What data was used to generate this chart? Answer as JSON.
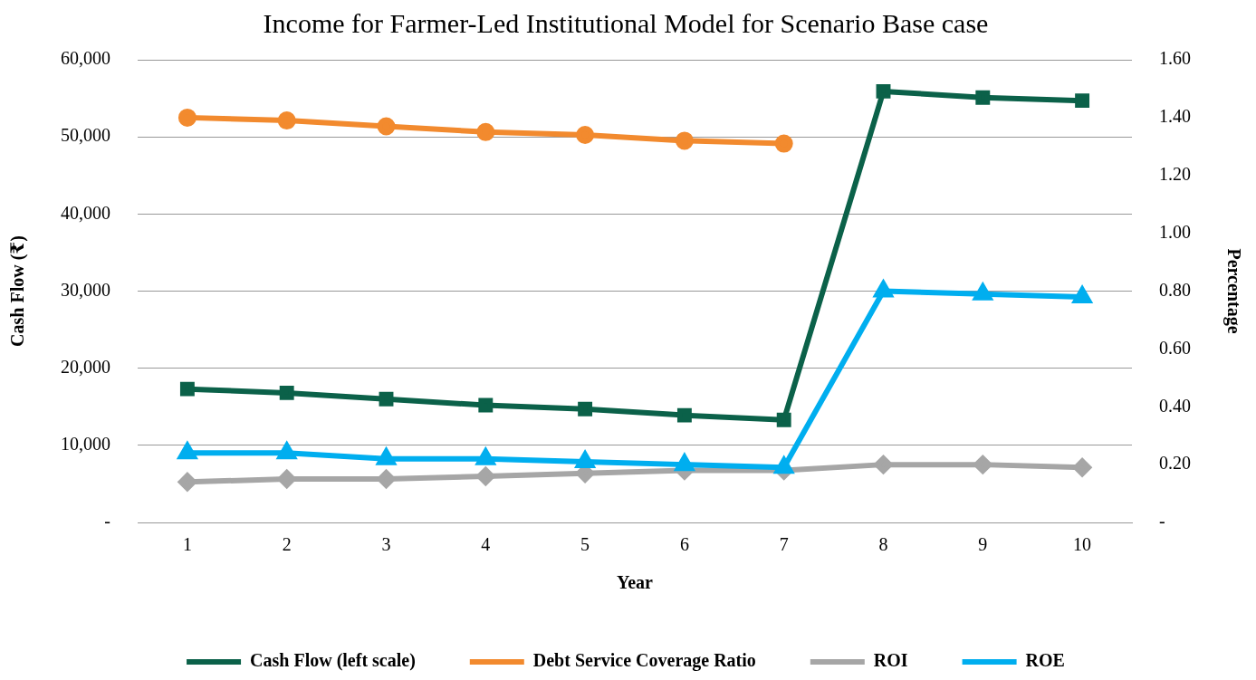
{
  "chart_data": {
    "type": "line",
    "title": "Income for Farmer-Led Institutional Model for Scenario Base case",
    "xlabel": "Year",
    "ylabel": "Cash Flow (₹)",
    "y2label": "Percentage",
    "categories": [
      "1",
      "2",
      "3",
      "4",
      "5",
      "6",
      "7",
      "8",
      "9",
      "10"
    ],
    "ylim": [
      0,
      60000
    ],
    "yticks": [
      {
        "value": 0,
        "label": "-"
      },
      {
        "value": 10000,
        "label": "10,000"
      },
      {
        "value": 20000,
        "label": "20,000"
      },
      {
        "value": 30000,
        "label": "30,000"
      },
      {
        "value": 40000,
        "label": "40,000"
      },
      {
        "value": 50000,
        "label": "50,000"
      },
      {
        "value": 60000,
        "label": "60,000"
      }
    ],
    "y2lim": [
      0,
      1.6
    ],
    "y2ticks": [
      {
        "value": 0,
        "label": "-"
      },
      {
        "value": 0.2,
        "label": "0.20"
      },
      {
        "value": 0.4,
        "label": "0.40"
      },
      {
        "value": 0.6,
        "label": "0.60"
      },
      {
        "value": 0.8,
        "label": "0.80"
      },
      {
        "value": 1.0,
        "label": "1.00"
      },
      {
        "value": 1.2,
        "label": "1.20"
      },
      {
        "value": 1.4,
        "label": "1.40"
      },
      {
        "value": 1.6,
        "label": "1.60"
      }
    ],
    "grid": "y",
    "legend": "bottom",
    "line_style": "solid",
    "series": [
      {
        "name": "Cash Flow (left scale)",
        "color": "#0b6149",
        "marker": "square",
        "values": [
          17300,
          16800,
          16000,
          15200,
          14700,
          13900,
          13300,
          55900,
          55100,
          54700
        ]
      },
      {
        "name": "Debt Service Coverage Ratio",
        "color": "#f28a2e",
        "marker": "circle",
        "axis": "y2",
        "values": [
          1.4,
          1.39,
          1.37,
          1.35,
          1.34,
          1.32,
          1.31,
          null,
          null,
          null
        ]
      },
      {
        "name": "ROI",
        "color": "#a6a6a6",
        "marker": "diamond",
        "axis": "y2",
        "values": [
          0.14,
          0.15,
          0.15,
          0.16,
          0.17,
          0.18,
          0.18,
          0.2,
          0.2,
          0.19
        ]
      },
      {
        "name": "ROE",
        "color": "#00aeef",
        "marker": "triangle",
        "axis": "y2",
        "values": [
          0.24,
          0.24,
          0.22,
          0.22,
          0.21,
          0.2,
          0.19,
          0.8,
          0.79,
          0.78
        ]
      }
    ]
  }
}
